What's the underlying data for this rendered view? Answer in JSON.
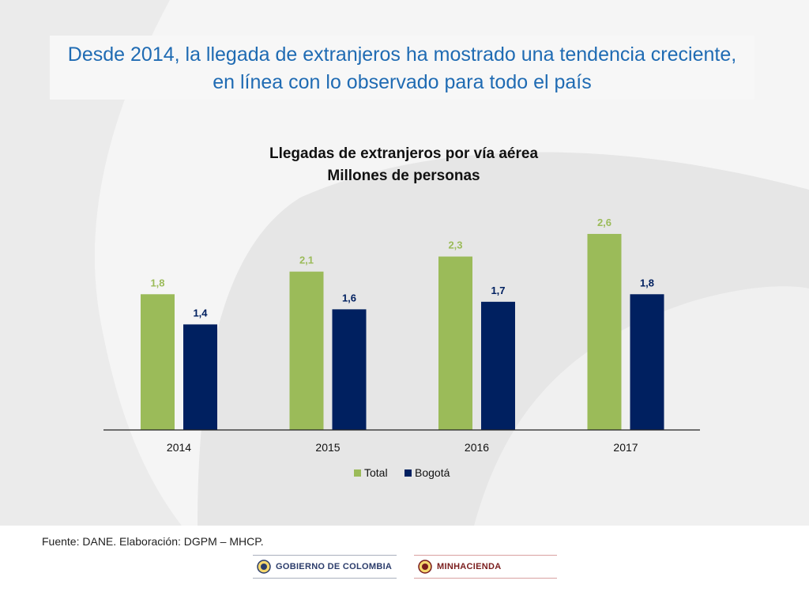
{
  "slide": {
    "headline_line1": "Desde 2014, la llegada de extranjeros ha mostrado una tendencia creciente,",
    "headline_line2": "en línea con lo observado para todo el país",
    "source": "Fuente: DANE. Elaboración: DGPM – MHCP."
  },
  "logos": {
    "gobierno": "GOBIERNO DE COLOMBIA",
    "minhacienda": "MINHACIENDA"
  },
  "colors": {
    "total": "#9bbb59",
    "bogota": "#002060",
    "headline": "#1f6bb3"
  },
  "chart_data": {
    "type": "bar",
    "title": "Llegadas de extranjeros por vía aérea",
    "subtitle": "Millones de personas",
    "categories": [
      "2014",
      "2015",
      "2016",
      "2017"
    ],
    "series": [
      {
        "name": "Total",
        "values": [
          1.8,
          2.1,
          2.3,
          2.6
        ],
        "labels": [
          "1,8",
          "2,1",
          "2,3",
          "2,6"
        ]
      },
      {
        "name": "Bogotá",
        "values": [
          1.4,
          1.6,
          1.7,
          1.8
        ],
        "labels": [
          "1,4",
          "1,6",
          "1,7",
          "1,8"
        ]
      }
    ],
    "ylim": [
      0,
      2.6
    ],
    "grid": false,
    "legend": "bottom"
  }
}
